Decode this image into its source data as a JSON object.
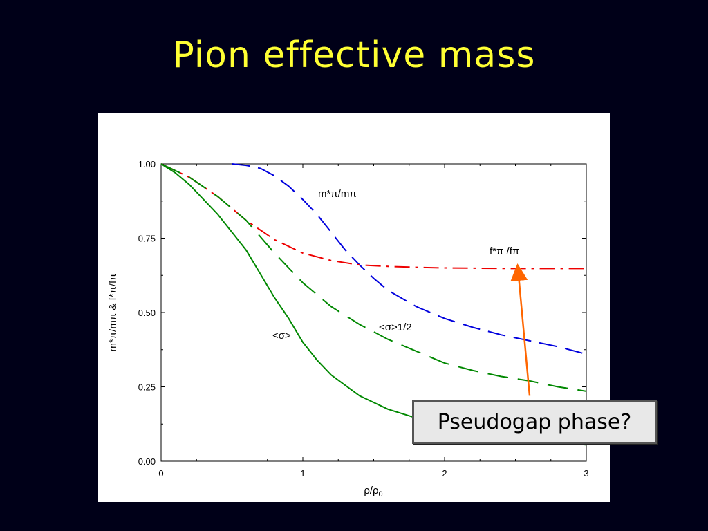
{
  "slide": {
    "title": "Pion effective mass",
    "callout": "Pseudogap phase?"
  },
  "chart_data": {
    "type": "line",
    "xlabel_main": "ρ/ρ",
    "xlabel_sub": "0",
    "ylabel": "m*π/mπ & f*π/fπ",
    "xlim": [
      0,
      3
    ],
    "ylim": [
      0,
      1
    ],
    "x_ticks": [
      "0",
      "1",
      "2",
      "3"
    ],
    "y_ticks": [
      "0.00",
      "0.25",
      "0.50",
      "0.75",
      "1.00"
    ],
    "grid": false,
    "colors": {
      "mass": "#0000dd",
      "decay": "#ee0000",
      "sigma": "#008800",
      "arrow": "#ff6600"
    },
    "annotations": {
      "mass": "m*π/mπ",
      "decay": "f*π /fπ",
      "sqrt_sigma": "<σ>1/2",
      "sigma": "<σ>"
    },
    "series": [
      {
        "key": "mass",
        "style": "dashed",
        "x": [
          0.5,
          0.6,
          0.7,
          0.8,
          0.9,
          1.0,
          1.1,
          1.2,
          1.3,
          1.4,
          1.5,
          1.6,
          1.8,
          2.0,
          2.2,
          2.4,
          2.6,
          2.8,
          3.0
        ],
        "y": [
          1.0,
          0.995,
          0.985,
          0.96,
          0.925,
          0.88,
          0.83,
          0.77,
          0.71,
          0.66,
          0.615,
          0.575,
          0.52,
          0.48,
          0.45,
          0.425,
          0.405,
          0.385,
          0.36
        ]
      },
      {
        "key": "decay",
        "style": "dashdot",
        "x": [
          0,
          0.2,
          0.4,
          0.6,
          0.8,
          1.0,
          1.2,
          1.4,
          1.6,
          1.8,
          2.0,
          2.5,
          3.0
        ],
        "y": [
          1.0,
          0.955,
          0.89,
          0.81,
          0.745,
          0.7,
          0.675,
          0.66,
          0.655,
          0.652,
          0.65,
          0.648,
          0.648
        ]
      },
      {
        "key": "sqrt_sigma",
        "style": "longdash",
        "x": [
          0,
          0.2,
          0.4,
          0.6,
          0.8,
          1.0,
          1.2,
          1.4,
          1.6,
          1.8,
          2.0,
          2.2,
          2.4,
          2.6,
          2.8,
          3.0
        ],
        "y": [
          1.0,
          0.955,
          0.89,
          0.81,
          0.7,
          0.6,
          0.52,
          0.46,
          0.41,
          0.37,
          0.33,
          0.305,
          0.285,
          0.27,
          0.25,
          0.235
        ]
      },
      {
        "key": "sigma",
        "style": "solid",
        "x": [
          0,
          0.1,
          0.2,
          0.3,
          0.4,
          0.5,
          0.6,
          0.7,
          0.8,
          0.9,
          1.0,
          1.1,
          1.2,
          1.4,
          1.6,
          1.8,
          2.0,
          2.2,
          2.4,
          2.6,
          2.8,
          3.0
        ],
        "y": [
          1.0,
          0.97,
          0.93,
          0.88,
          0.83,
          0.77,
          0.71,
          0.63,
          0.55,
          0.48,
          0.4,
          0.34,
          0.29,
          0.22,
          0.175,
          0.145,
          0.12,
          0.1,
          0.085,
          0.075,
          0.065,
          0.055
        ]
      }
    ],
    "arrow": {
      "from": [
        2.6,
        0.22
      ],
      "to": [
        2.52,
        0.65
      ]
    }
  }
}
